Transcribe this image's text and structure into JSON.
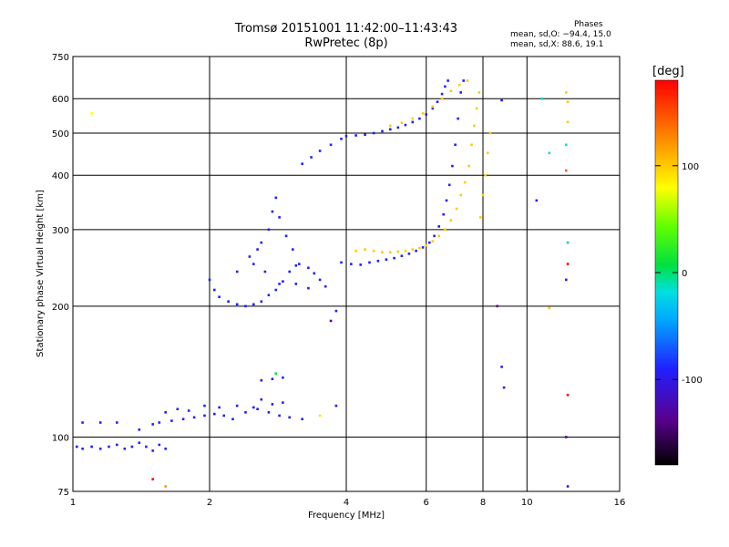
{
  "header": {
    "title_line1": "Tromsø 20151001 11:42:00–11:43:43",
    "title_line2": "RwPretec (8p)"
  },
  "phases": {
    "title": "Phases",
    "line_o": "mean, sd,O: −94.4, 15.0",
    "line_x": "mean, sd,X:  88.6, 19.1"
  },
  "colorbar": {
    "unit": "[deg]",
    "range": [
      -180,
      180
    ],
    "ticks": [
      100,
      0,
      -100
    ]
  },
  "chart_data": {
    "type": "scatter",
    "xlabel": "Frequency [MHz]",
    "ylabel": "Stationary phase Virtual Height [km]",
    "xscale": "log2",
    "yscale": "log",
    "xlim": [
      1,
      16
    ],
    "ylim": [
      75,
      750
    ],
    "xticks": [
      1,
      2,
      4,
      6,
      8,
      10,
      16
    ],
    "yticks": [
      75,
      100,
      200,
      300,
      400,
      500,
      600,
      750
    ],
    "grid": true,
    "series": [
      {
        "name": "O",
        "phase": -100,
        "points": [
          [
            1.02,
            95
          ],
          [
            1.05,
            94
          ],
          [
            1.1,
            95
          ],
          [
            1.15,
            94
          ],
          [
            1.2,
            95
          ],
          [
            1.25,
            96
          ],
          [
            1.3,
            94
          ],
          [
            1.35,
            95
          ],
          [
            1.4,
            97
          ],
          [
            1.45,
            95
          ],
          [
            1.5,
            93
          ],
          [
            1.55,
            96
          ],
          [
            1.6,
            94
          ],
          [
            1.05,
            108
          ],
          [
            1.15,
            108
          ],
          [
            1.25,
            108
          ],
          [
            1.4,
            104
          ],
          [
            1.5,
            107
          ],
          [
            1.55,
            108
          ],
          [
            1.65,
            109
          ],
          [
            1.75,
            110
          ],
          [
            1.85,
            111
          ],
          [
            1.95,
            112
          ],
          [
            2.05,
            113
          ],
          [
            2.15,
            112
          ],
          [
            2.25,
            110
          ],
          [
            2.4,
            114
          ],
          [
            2.55,
            116
          ],
          [
            2.7,
            114
          ],
          [
            2.85,
            112
          ],
          [
            3.0,
            111
          ],
          [
            3.2,
            110
          ],
          [
            1.6,
            114
          ],
          [
            1.7,
            116
          ],
          [
            1.8,
            115
          ],
          [
            1.95,
            118
          ],
          [
            2.1,
            117
          ],
          [
            2.3,
            118
          ],
          [
            2.5,
            117
          ],
          [
            2.6,
            122
          ],
          [
            2.75,
            119
          ],
          [
            2.9,
            120
          ],
          [
            2.6,
            135
          ],
          [
            2.75,
            136
          ],
          [
            2.9,
            137
          ],
          [
            2.0,
            230
          ],
          [
            2.05,
            218
          ],
          [
            2.1,
            210
          ],
          [
            2.2,
            205
          ],
          [
            2.3,
            202
          ],
          [
            2.4,
            200
          ],
          [
            2.5,
            202
          ],
          [
            2.6,
            205
          ],
          [
            2.7,
            212
          ],
          [
            2.8,
            218
          ],
          [
            2.9,
            228
          ],
          [
            3.0,
            240
          ],
          [
            3.1,
            248
          ],
          [
            2.45,
            260
          ],
          [
            2.55,
            270
          ],
          [
            2.6,
            280
          ],
          [
            2.7,
            300
          ],
          [
            2.75,
            330
          ],
          [
            2.8,
            355
          ],
          [
            2.85,
            320
          ],
          [
            2.95,
            290
          ],
          [
            3.05,
            270
          ],
          [
            3.15,
            250
          ],
          [
            3.3,
            245
          ],
          [
            3.4,
            238
          ],
          [
            3.5,
            230
          ],
          [
            3.6,
            222
          ],
          [
            2.3,
            240
          ],
          [
            2.5,
            250
          ],
          [
            2.65,
            240
          ],
          [
            2.85,
            225
          ],
          [
            3.1,
            225
          ],
          [
            3.3,
            220
          ],
          [
            3.9,
            252
          ],
          [
            4.1,
            250
          ],
          [
            4.3,
            249
          ],
          [
            4.5,
            252
          ],
          [
            4.7,
            254
          ],
          [
            4.9,
            256
          ],
          [
            5.1,
            258
          ],
          [
            5.3,
            261
          ],
          [
            5.5,
            264
          ],
          [
            5.7,
            268
          ],
          [
            5.9,
            273
          ],
          [
            6.1,
            280
          ],
          [
            6.25,
            290
          ],
          [
            6.4,
            305
          ],
          [
            6.55,
            325
          ],
          [
            6.65,
            350
          ],
          [
            6.75,
            380
          ],
          [
            6.85,
            420
          ],
          [
            6.95,
            470
          ],
          [
            7.05,
            540
          ],
          [
            7.15,
            620
          ],
          [
            7.25,
            660
          ],
          [
            3.2,
            425
          ],
          [
            3.35,
            440
          ],
          [
            3.5,
            455
          ],
          [
            3.7,
            470
          ],
          [
            3.9,
            485
          ],
          [
            4.0,
            492
          ],
          [
            4.2,
            494
          ],
          [
            4.4,
            496
          ],
          [
            4.6,
            500
          ],
          [
            4.8,
            505
          ],
          [
            5.0,
            510
          ],
          [
            5.2,
            515
          ],
          [
            5.4,
            522
          ],
          [
            5.6,
            530
          ],
          [
            5.8,
            540
          ],
          [
            6.0,
            552
          ],
          [
            6.2,
            570
          ],
          [
            6.35,
            590
          ],
          [
            6.5,
            615
          ],
          [
            6.6,
            640
          ],
          [
            6.7,
            660
          ]
        ]
      },
      {
        "name": "X",
        "phase": 100,
        "points": [
          [
            4.2,
            268
          ],
          [
            4.4,
            270
          ],
          [
            4.6,
            268
          ],
          [
            4.8,
            266
          ],
          [
            5.0,
            266
          ],
          [
            5.2,
            267
          ],
          [
            5.4,
            268
          ],
          [
            5.6,
            270
          ],
          [
            5.8,
            272
          ],
          [
            6.0,
            276
          ],
          [
            6.2,
            282
          ],
          [
            6.4,
            290
          ],
          [
            6.6,
            300
          ],
          [
            6.8,
            315
          ],
          [
            7.0,
            335
          ],
          [
            7.15,
            360
          ],
          [
            7.3,
            385
          ],
          [
            7.45,
            420
          ],
          [
            7.55,
            470
          ],
          [
            7.65,
            520
          ],
          [
            7.75,
            570
          ],
          [
            7.85,
            620
          ],
          [
            5.0,
            520
          ],
          [
            5.3,
            528
          ],
          [
            5.6,
            540
          ],
          [
            5.9,
            555
          ],
          [
            6.2,
            575
          ],
          [
            6.5,
            600
          ],
          [
            6.8,
            625
          ],
          [
            7.1,
            645
          ],
          [
            7.4,
            660
          ],
          [
            7.9,
            320
          ],
          [
            8.0,
            360
          ],
          [
            8.1,
            400
          ],
          [
            8.2,
            450
          ],
          [
            8.3,
            500
          ]
        ]
      }
    ],
    "scattered": [
      [
        1.1,
        555,
        80
      ],
      [
        1.5,
        80,
        180
      ],
      [
        1.6,
        77,
        120
      ],
      [
        8.8,
        595,
        -100
      ],
      [
        10.8,
        600,
        -30
      ],
      [
        12.2,
        620,
        100
      ],
      [
        12.3,
        590,
        100
      ],
      [
        12.3,
        530,
        100
      ],
      [
        12.2,
        470,
        -20
      ],
      [
        11.2,
        450,
        -20
      ],
      [
        12.2,
        410,
        140
      ],
      [
        12.3,
        280,
        0
      ],
      [
        12.3,
        250,
        180
      ],
      [
        12.2,
        230,
        -100
      ],
      [
        12.3,
        125,
        180
      ],
      [
        12.2,
        100,
        -140
      ],
      [
        12.3,
        77,
        -100
      ],
      [
        11.2,
        198,
        100
      ],
      [
        8.6,
        200,
        -140
      ],
      [
        8.8,
        145,
        -100
      ],
      [
        8.9,
        130,
        -100
      ],
      [
        3.5,
        112,
        90
      ],
      [
        3.8,
        118,
        -100
      ],
      [
        2.8,
        140,
        10
      ],
      [
        3.8,
        195,
        -100
      ],
      [
        3.7,
        185,
        -140
      ],
      [
        10.5,
        350,
        -100
      ]
    ]
  }
}
